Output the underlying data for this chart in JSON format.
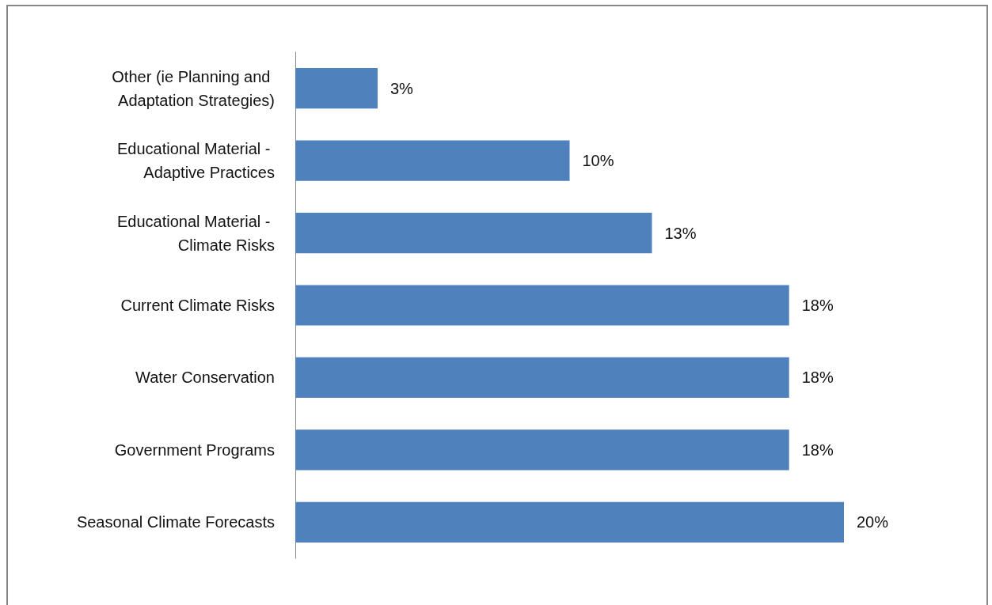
{
  "chart_data": {
    "type": "bar",
    "orientation": "horizontal",
    "categories": [
      "Other (ie Planning and Adaptation Strategies)",
      "Educational Material - Adaptive Practices",
      "Educational Material - Climate Risks",
      "Current Climate Risks",
      "Water Conservation",
      "Government Programs",
      "Seasonal Climate Forecasts"
    ],
    "values": [
      3,
      10,
      13,
      18,
      18,
      18,
      20
    ],
    "value_labels": [
      "3%",
      "10%",
      "13%",
      "18%",
      "18%",
      "18%",
      "20%"
    ],
    "color": "#4f81bd"
  }
}
